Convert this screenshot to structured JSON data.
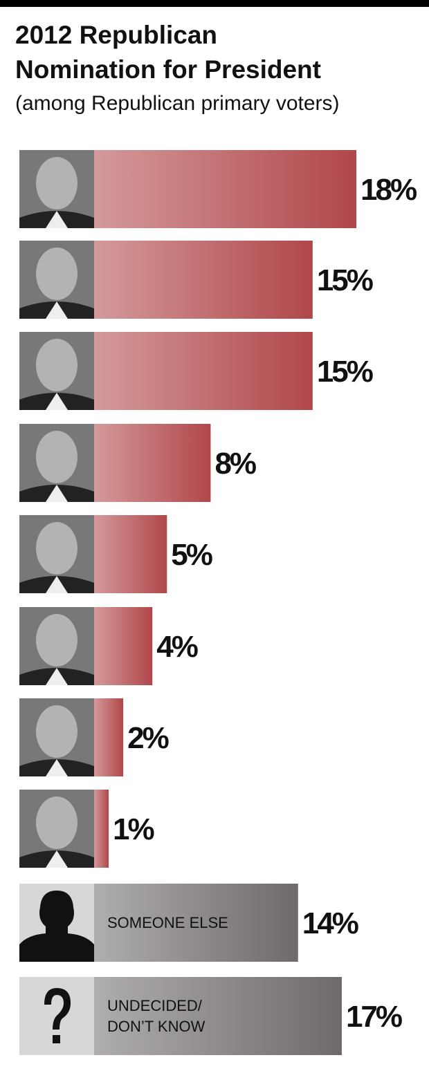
{
  "chart_data": {
    "type": "bar",
    "title": "2012 Republican\nNomination for President",
    "subtitle": "(among Republican primary voters)",
    "categories": [
      null,
      null,
      null,
      null,
      null,
      null,
      null,
      null,
      "SOMEONE ELSE",
      "UNDECIDED/\nDON’T KNOW"
    ],
    "values": [
      18,
      15,
      15,
      8,
      5,
      4,
      2,
      1,
      14,
      17
    ],
    "value_labels": [
      "18%",
      "15%",
      "15%",
      "8%",
      "5%",
      "4%",
      "2%",
      "1%",
      "14%",
      "17%"
    ],
    "colors": [
      "#b0474a",
      "#b0474a",
      "#b0474a",
      "#b0474a",
      "#b0474a",
      "#b0474a",
      "#b0474a",
      "#b0474a",
      "#6f6a6a",
      "#6f6a6a"
    ]
  }
}
